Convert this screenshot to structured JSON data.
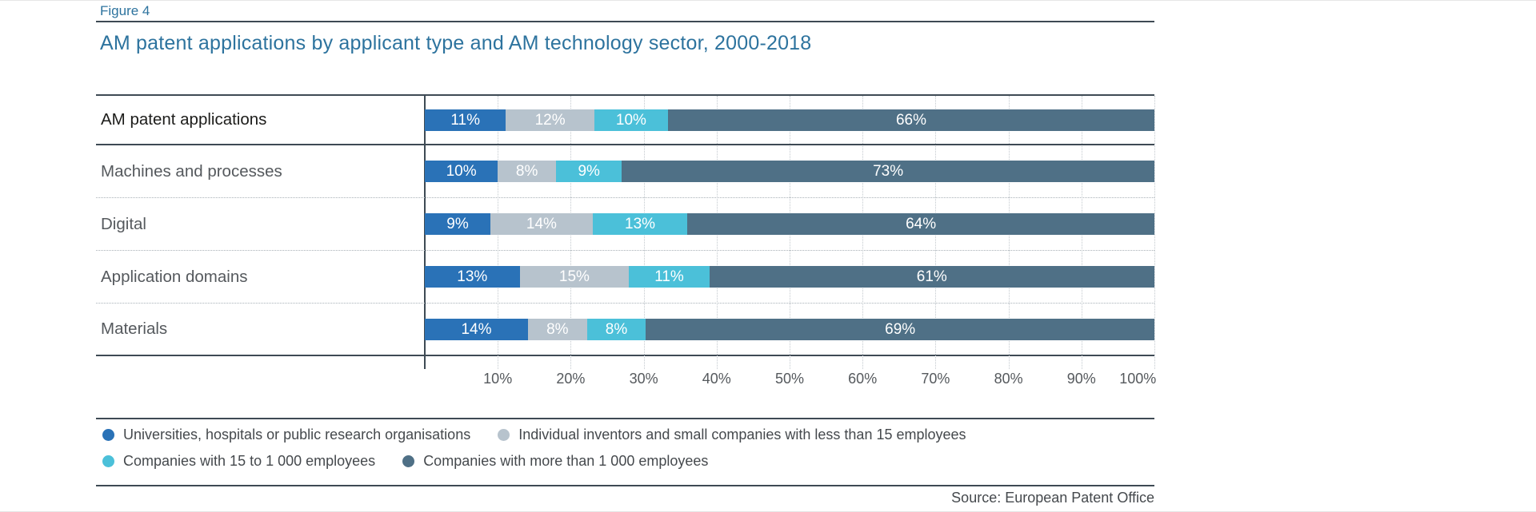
{
  "figure_label": "Figure 4",
  "title": "AM patent applications by applicant type and AM technology sector, 2000-2018",
  "source": "Source: European Patent Office",
  "colors": {
    "accent_text": "#2d739e",
    "line_strong": "#3e4a54",
    "text_dark": "#1c1c1a",
    "text_gray": "#55595d",
    "gridline": "#c3c9ce"
  },
  "chart_data": {
    "type": "bar",
    "stacked": true,
    "orientation": "horizontal",
    "title": "AM patent applications by applicant type and AM technology sector, 2000-2018",
    "categories": [
      "AM patent applications",
      "Machines and processes",
      "Digital",
      "Application domains",
      "Materials"
    ],
    "series": [
      {
        "name": "Universities, hospitals or public research organisations",
        "color": "#2a72b7",
        "values": [
          11,
          10,
          9,
          13,
          14
        ]
      },
      {
        "name": "Individual inventors and small companies with less than 15 employees",
        "color": "#b7c3cd",
        "values": [
          12,
          8,
          14,
          15,
          8
        ]
      },
      {
        "name": "Companies with 15 to 1 000 employees",
        "color": "#4bc0d9",
        "values": [
          10,
          9,
          13,
          11,
          8
        ]
      },
      {
        "name": "Companies with more than 1 000 employees",
        "color": "#4f7086",
        "values": [
          66,
          73,
          64,
          61,
          69
        ]
      }
    ],
    "value_suffix": "%",
    "x_axis": {
      "range": [
        0,
        100
      ],
      "ticks": [
        "10%",
        "20%",
        "30%",
        "40%",
        "50%",
        "60%",
        "70%",
        "80%",
        "90%",
        "100%"
      ],
      "grid": "dotted-vertical"
    },
    "legend_position": "bottom",
    "legend_rows": [
      [
        0,
        1
      ],
      [
        2,
        3
      ]
    ]
  }
}
